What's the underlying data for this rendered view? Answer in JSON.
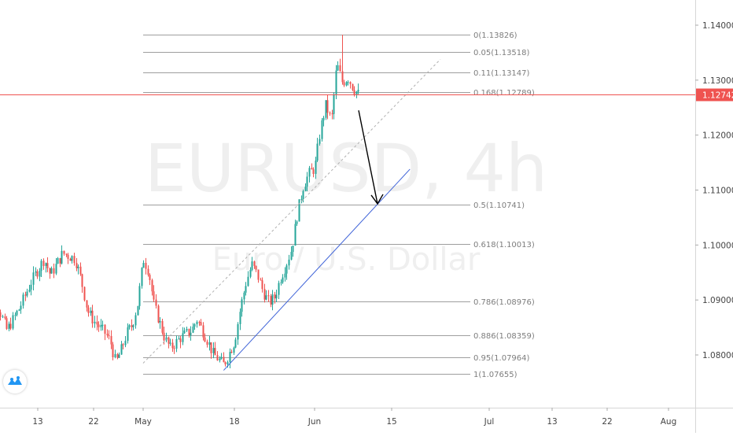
{
  "chart_data": {
    "type": "candlestick",
    "symbol": "EURUSD",
    "timeframe": "4h",
    "watermark_title": "EURUSD, 4h",
    "watermark_subtitle": "Euro / U.S. Dollar",
    "x_axis_ticks": [
      "13",
      "22",
      "May",
      "18",
      "Jun",
      "15",
      "Jul",
      "13",
      "22",
      "Aug"
    ],
    "y_axis_ticks": [
      "1.14000",
      "1.13000",
      "1.12000",
      "1.11000",
      "1.10000",
      "1.09000",
      "1.08000"
    ],
    "ylim": [
      1.0725,
      1.1418
    ],
    "current_price": "1.12742",
    "current_price_value": 1.12742,
    "colors": {
      "up": "#26a69a",
      "down": "#ef5350",
      "price_line": "#ef5350",
      "trendline": "#3f63d8",
      "fib": "#9e9e9e",
      "arrow": "#000000"
    },
    "fib_levels": [
      {
        "ratio": "0",
        "price": 1.13826,
        "label": "0(1.13826)"
      },
      {
        "ratio": "0.05",
        "price": 1.13518,
        "label": "0.05(1.13518)"
      },
      {
        "ratio": "0.11",
        "price": 1.13147,
        "label": "0.11(1.13147)"
      },
      {
        "ratio": "0.168",
        "price": 1.12789,
        "label": "0.168(1.12789)"
      },
      {
        "ratio": "0.5",
        "price": 1.10741,
        "label": "0.5(1.10741)"
      },
      {
        "ratio": "0.618",
        "price": 1.10013,
        "label": "0.618(1.10013)"
      },
      {
        "ratio": "0.786",
        "price": 1.08976,
        "label": "0.786(1.08976)"
      },
      {
        "ratio": "0.886",
        "price": 1.08359,
        "label": "0.886(1.08359)"
      },
      {
        "ratio": "0.95",
        "price": 1.07964,
        "label": "0.95(1.07964)"
      },
      {
        "ratio": "1",
        "price": 1.07655,
        "label": "1(1.07655)"
      }
    ],
    "trendline": {
      "from": [
        "May 16",
        1.0772
      ],
      "to": [
        "Jun 18",
        1.1138
      ]
    },
    "fib_diagonal": {
      "from": [
        "May",
        1.0785
      ],
      "to": [
        "Jun 23",
        1.1338
      ]
    },
    "projection_arrow": {
      "from": [
        "Jun 10",
        1.1245
      ],
      "to": [
        "Jun 12",
        1.1075
      ]
    },
    "price_path": [
      [
        "Apr 4",
        1.0815
      ],
      [
        "Apr 6",
        1.0905
      ],
      [
        "Apr 8",
        1.0845
      ],
      [
        "Apr 10",
        1.0885
      ],
      [
        "Apr 12",
        1.0935
      ],
      [
        "Apr 14",
        1.0975
      ],
      [
        "Apr 15",
        1.0945
      ],
      [
        "Apr 17",
        1.0985
      ],
      [
        "Apr 19",
        1.0975
      ],
      [
        "Apr 20",
        1.0935
      ],
      [
        "Apr 21",
        1.088
      ],
      [
        "Apr 22",
        1.0862
      ],
      [
        "Apr 24",
        1.084
      ],
      [
        "Apr 25",
        1.0825
      ],
      [
        "Apr 26",
        1.0785
      ],
      [
        "Apr 27",
        1.081
      ],
      [
        "Apr 28",
        1.084
      ],
      [
        "Apr 29",
        1.0855
      ],
      [
        "Apr 30",
        1.0895
      ],
      [
        "May 1",
        1.0975
      ],
      [
        "May 2",
        1.0952
      ],
      [
        "May 3",
        1.089
      ],
      [
        "May 5",
        1.083
      ],
      [
        "May 6",
        1.0812
      ],
      [
        "May 8",
        1.0832
      ],
      [
        "May 10",
        1.0845
      ],
      [
        "May 11",
        1.0865
      ],
      [
        "May 13",
        1.0825
      ],
      [
        "May 14",
        1.0802
      ],
      [
        "May 16",
        1.0782
      ],
      [
        "May 18",
        1.0825
      ],
      [
        "May 19",
        1.0885
      ],
      [
        "May 20",
        1.0932
      ],
      [
        "May 21",
        1.0965
      ],
      [
        "May 22",
        1.0945
      ],
      [
        "May 23",
        1.0915
      ],
      [
        "May 24",
        1.0895
      ],
      [
        "May 25",
        1.0905
      ],
      [
        "May 26",
        1.094
      ],
      [
        "May 27",
        1.0965
      ],
      [
        "May 28",
        1.0995
      ],
      [
        "May 29",
        1.106
      ],
      [
        "May 30",
        1.1108
      ],
      [
        "May 31",
        1.113
      ],
      [
        "Jun 1",
        1.114
      ],
      [
        "Jun 2",
        1.121
      ],
      [
        "Jun 3",
        1.1255
      ],
      [
        "Jun 4",
        1.1225
      ],
      [
        "Jun 5",
        1.133
      ],
      [
        "Jun 6",
        1.1295
      ],
      [
        "Jun 7",
        1.1305
      ],
      [
        "Jun 8",
        1.1285
      ],
      [
        "Jun 9",
        1.1274
      ]
    ]
  }
}
